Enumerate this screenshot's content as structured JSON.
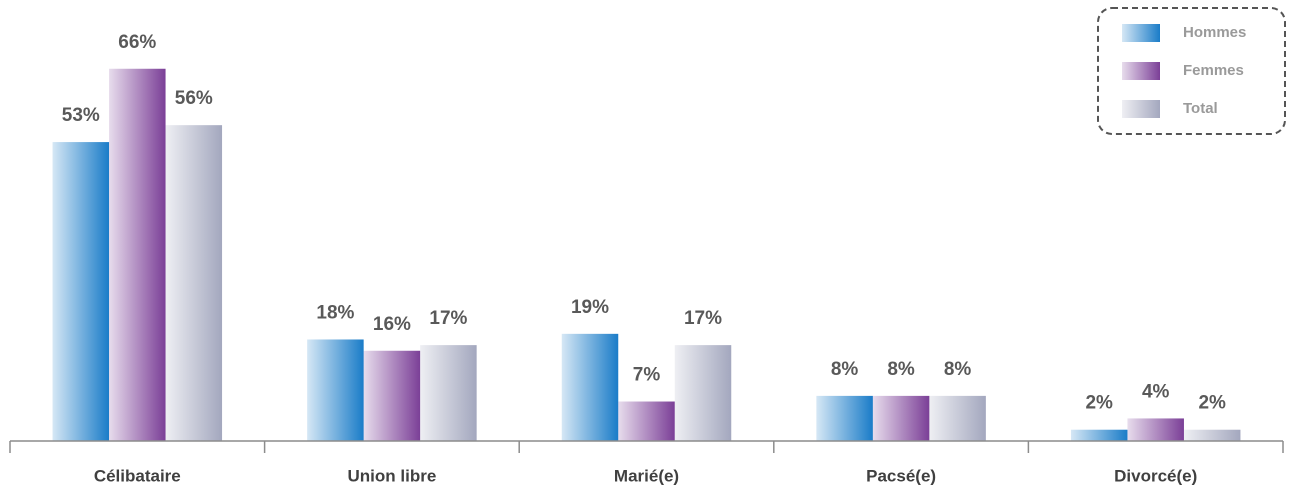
{
  "chart_data": {
    "type": "bar",
    "categories": [
      "Célibataire",
      "Union libre",
      "Marié(e)",
      "Pacsé(e)",
      "Divorcé(e)"
    ],
    "series": [
      {
        "name": "Hommes",
        "color": "#1a7cc8",
        "values": [
          53,
          18,
          19,
          8,
          2
        ],
        "value_labels": [
          "53%",
          "18%",
          "19%",
          "8%",
          "2%"
        ]
      },
      {
        "name": "Femmes",
        "color": "#7b3f97",
        "values": [
          66,
          16,
          7,
          8,
          4
        ],
        "value_labels": [
          "66%",
          "16%",
          "7%",
          "8%",
          "4%"
        ]
      },
      {
        "name": "Total",
        "color": "#a3a7be",
        "values": [
          56,
          17,
          17,
          8,
          2
        ],
        "value_labels": [
          "56%",
          "17%",
          "17%",
          "8%",
          "2%"
        ]
      }
    ],
    "legend": "top-right"
  }
}
